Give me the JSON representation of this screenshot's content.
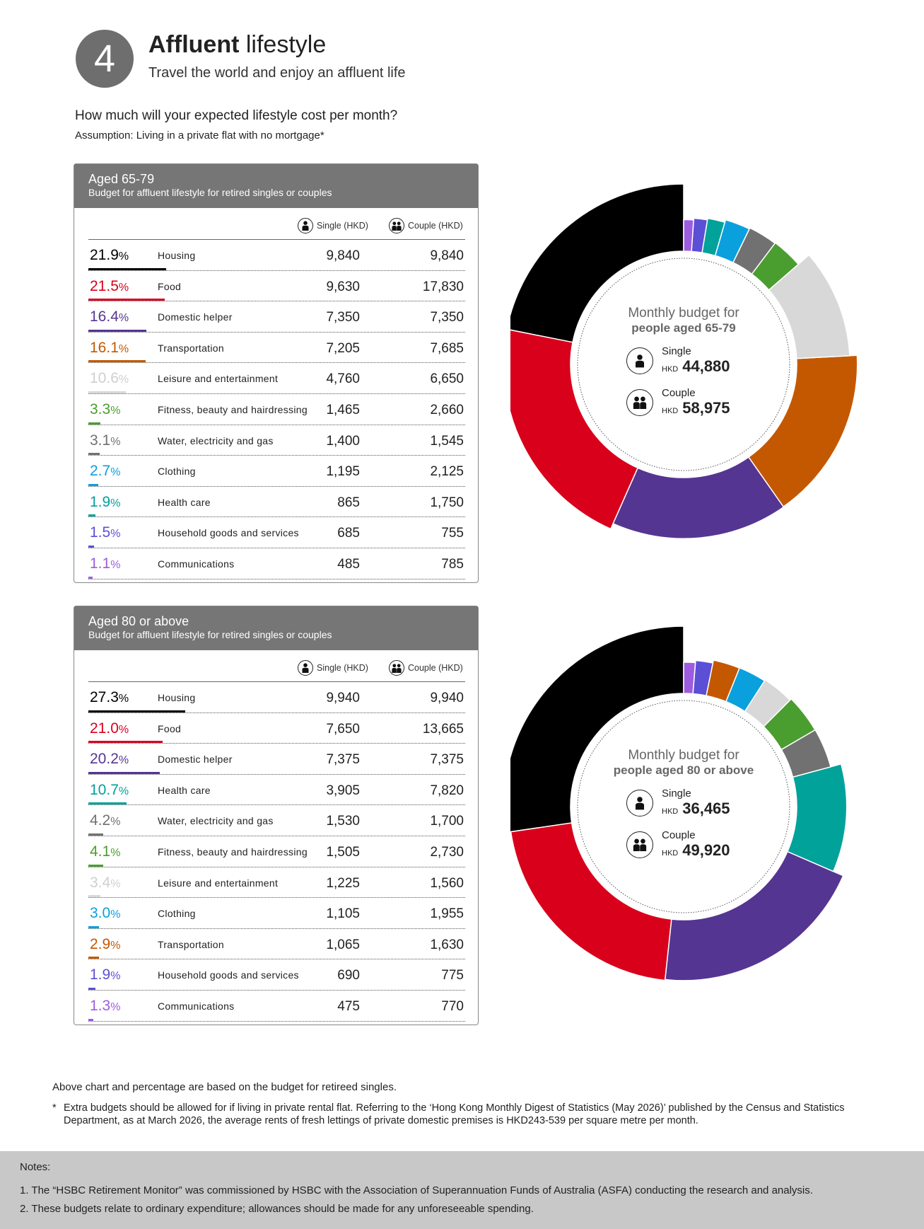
{
  "header": {
    "number": "4",
    "title_bold": "Affluent",
    "title_light": "lifestyle",
    "subtitle": "Travel the world and enjoy an affluent life",
    "question": "How much will your expected lifestyle cost per month?",
    "assumption": "Assumption: Living in a private flat with no mortgage*"
  },
  "colors": {
    "Housing": "#000000",
    "Food": "#d9001b",
    "Domestic helper": "#553592",
    "Transportation": "#c45800",
    "Leisure and entertainment": "#d8d8d8",
    "Fitness, beauty and hairdressing": "#4a9e2f",
    "Water, electricity and gas": "#717171",
    "Clothing": "#0aa0de",
    "Health care": "#00a29a",
    "Household goods and services": "#5b4fd6",
    "Communications": "#9d5ce0"
  },
  "tables": [
    {
      "heading": "Aged 65-79",
      "subheading": "Budget for affluent lifestyle for retired singles or couples",
      "col_single": "Single (HKD)",
      "col_couple": "Couple (HKD)",
      "rows": [
        {
          "pct": "21.9",
          "category": "Housing",
          "single": "9,840",
          "couple": "9,840"
        },
        {
          "pct": "21.5",
          "category": "Food",
          "single": "9,630",
          "couple": "17,830"
        },
        {
          "pct": "16.4",
          "category": "Domestic helper",
          "single": "7,350",
          "couple": "7,350"
        },
        {
          "pct": "16.1",
          "category": "Transportation",
          "single": "7,205",
          "couple": "7,685"
        },
        {
          "pct": "10.6",
          "category": "Leisure and entertainment",
          "single": "4,760",
          "couple": "6,650"
        },
        {
          "pct": "3.3",
          "category": "Fitness, beauty and hairdressing",
          "single": "1,465",
          "couple": "2,660"
        },
        {
          "pct": "3.1",
          "category": "Water, electricity and gas",
          "single": "1,400",
          "couple": "1,545"
        },
        {
          "pct": "2.7",
          "category": "Clothing",
          "single": "1,195",
          "couple": "2,125"
        },
        {
          "pct": "1.9",
          "category": "Health care",
          "single": "865",
          "couple": "1,750"
        },
        {
          "pct": "1.5",
          "category": "Household goods and services",
          "single": "685",
          "couple": "755"
        },
        {
          "pct": "1.1",
          "category": "Communications",
          "single": "485",
          "couple": "785"
        }
      ]
    },
    {
      "heading": "Aged 80 or above",
      "subheading": "Budget for affluent lifestyle for retired singles or couples",
      "col_single": "Single (HKD)",
      "col_couple": "Couple (HKD)",
      "rows": [
        {
          "pct": "27.3",
          "category": "Housing",
          "single": "9,940",
          "couple": "9,940"
        },
        {
          "pct": "21.0",
          "category": "Food",
          "single": "7,650",
          "couple": "13,665"
        },
        {
          "pct": "20.2",
          "category": "Domestic helper",
          "single": "7,375",
          "couple": "7,375"
        },
        {
          "pct": "10.7",
          "category": "Health care",
          "single": "3,905",
          "couple": "7,820"
        },
        {
          "pct": "4.2",
          "category": "Water, electricity and gas",
          "single": "1,530",
          "couple": "1,700"
        },
        {
          "pct": "4.1",
          "category": "Fitness, beauty and hairdressing",
          "single": "1,505",
          "couple": "2,730"
        },
        {
          "pct": "3.4",
          "category": "Leisure and entertainment",
          "single": "1,225",
          "couple": "1,560"
        },
        {
          "pct": "3.0",
          "category": "Clothing",
          "single": "1,105",
          "couple": "1,955"
        },
        {
          "pct": "2.9",
          "category": "Transportation",
          "single": "1,065",
          "couple": "1,630"
        },
        {
          "pct": "1.9",
          "category": "Household goods and services",
          "single": "690",
          "couple": "775"
        },
        {
          "pct": "1.3",
          "category": "Communications",
          "single": "475",
          "couple": "770"
        }
      ]
    }
  ],
  "chart_data": [
    {
      "type": "pie",
      "title": "Monthly budget for people aged 65-79",
      "center_line1": "Monthly budget for",
      "center_line2": "people aged 65-79",
      "single_label": "Single",
      "couple_label": "Couple",
      "currency": "HKD",
      "single_total": "44,880",
      "couple_total": "58,975",
      "categories": [
        "Housing",
        "Food",
        "Domestic helper",
        "Transportation",
        "Leisure and entertainment",
        "Fitness, beauty and hairdressing",
        "Water, electricity and gas",
        "Clothing",
        "Health care",
        "Household goods and services",
        "Communications"
      ],
      "values": [
        21.9,
        21.5,
        16.4,
        16.1,
        10.6,
        3.3,
        3.1,
        2.7,
        1.9,
        1.5,
        1.1
      ]
    },
    {
      "type": "pie",
      "title": "Monthly budget for people aged 80 or above",
      "center_line1": "Monthly budget for",
      "center_line2": "people aged 80 or above",
      "single_label": "Single",
      "couple_label": "Couple",
      "currency": "HKD",
      "single_total": "36,465",
      "couple_total": "49,920",
      "categories": [
        "Housing",
        "Food",
        "Domestic helper",
        "Health care",
        "Water, electricity and gas",
        "Fitness, beauty and hairdressing",
        "Leisure and entertainment",
        "Clothing",
        "Transportation",
        "Household goods and services",
        "Communications"
      ],
      "values": [
        27.3,
        21.0,
        20.2,
        10.7,
        4.2,
        4.1,
        3.4,
        3.0,
        2.9,
        1.9,
        1.3
      ]
    }
  ],
  "footnotes": {
    "basis": "Above chart and percentage are based on the budget for retireed singles.",
    "star": "*",
    "rent": "Extra budgets should be allowed for if living in private rental flat. Referring to the ‘Hong Kong Monthly Digest of Statistics (May 2026)’ published by the Census and Statistics Department, as at March 2026, the average rents of fresh lettings of private domestic premises is HKD243-539 per square metre per month."
  },
  "notes": {
    "heading": "Notes:",
    "note1": "1. The “HSBC Retirement Monitor” was commissioned by HSBC with the Association of Superannuation Funds of Australia (ASFA) conducting the research and analysis.",
    "note2": "2. These budgets relate to ordinary expenditure; allowances should be made for any unforeseeable spending."
  }
}
